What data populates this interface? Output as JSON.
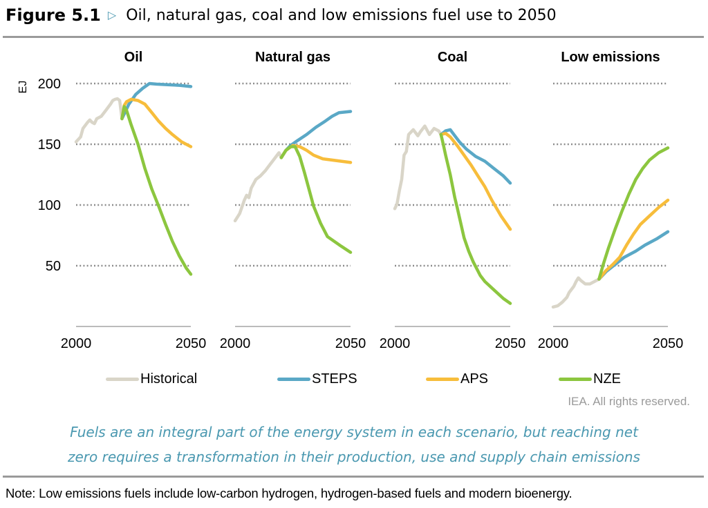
{
  "figure": {
    "number": "Figure 5.1",
    "marker_icon": "triangle-right",
    "title": "Oil, natural gas, coal and low emissions fuel use to 2050"
  },
  "legend": [
    {
      "name": "Historical",
      "color": "#d9d5c8"
    },
    {
      "name": "STEPS",
      "color": "#5aa8c6"
    },
    {
      "name": "APS",
      "color": "#f7bd3b"
    },
    {
      "name": "NZE",
      "color": "#8cc63f"
    }
  ],
  "rights": "IEA. All rights reserved.",
  "caption": {
    "line1": "Fuels are an integral part of the energy system in each scenario, but reaching net",
    "line2": "zero requires a transformation in their production, use and supply chain emissions"
  },
  "note": "Note: Low emissions fuels include low-carbon hydrogen, hydrogen-based fuels and modern bioenergy.",
  "chart_data": {
    "type": "line",
    "ylabel": "EJ",
    "ylim": [
      0,
      200
    ],
    "yticks": [
      50,
      100,
      150,
      200
    ],
    "xlim": [
      2000,
      2050
    ],
    "xticks": [
      "2000",
      "2050"
    ],
    "grid": "horizontal-dotted",
    "legend_position": "bottom",
    "panels": [
      {
        "title": "Oil",
        "series": [
          {
            "name": "Historical",
            "points": [
              [
                2000,
                152
              ],
              [
                2002,
                156
              ],
              [
                2003,
                163
              ],
              [
                2005,
                168
              ],
              [
                2006,
                170
              ],
              [
                2007,
                168
              ],
              [
                2008,
                167
              ],
              [
                2009,
                171
              ],
              [
                2011,
                173
              ],
              [
                2013,
                178
              ],
              [
                2015,
                183
              ],
              [
                2016,
                186
              ],
              [
                2017,
                187
              ],
              [
                2018,
                187.5
              ],
              [
                2019,
                186
              ],
              [
                2020,
                171
              ]
            ]
          },
          {
            "name": "STEPS",
            "points": [
              [
                2020,
                171
              ],
              [
                2021,
                175
              ],
              [
                2023,
                183
              ],
              [
                2026,
                191
              ],
              [
                2029,
                196
              ],
              [
                2032,
                200
              ],
              [
                2035,
                199.5
              ],
              [
                2040,
                199
              ],
              [
                2045,
                198.5
              ],
              [
                2050,
                197.5
              ]
            ]
          },
          {
            "name": "APS",
            "points": [
              [
                2020,
                171
              ],
              [
                2021,
                182
              ],
              [
                2022,
                185
              ],
              [
                2024,
                187
              ],
              [
                2027,
                186
              ],
              [
                2030,
                183
              ],
              [
                2033,
                176
              ],
              [
                2036,
                169
              ],
              [
                2039,
                163
              ],
              [
                2042,
                158
              ],
              [
                2046,
                152
              ],
              [
                2050,
                148
              ]
            ]
          },
          {
            "name": "NZE",
            "points": [
              [
                2020,
                171
              ],
              [
                2021,
                181
              ],
              [
                2022,
                178
              ],
              [
                2024,
                166
              ],
              [
                2027,
                150
              ],
              [
                2030,
                130
              ],
              [
                2033,
                113
              ],
              [
                2036,
                99
              ],
              [
                2039,
                84
              ],
              [
                2042,
                70
              ],
              [
                2045,
                58
              ],
              [
                2048,
                48
              ],
              [
                2050,
                43
              ]
            ]
          }
        ]
      },
      {
        "title": "Natural gas",
        "series": [
          {
            "name": "Historical",
            "points": [
              [
                2000,
                87
              ],
              [
                2002,
                93
              ],
              [
                2004,
                104
              ],
              [
                2005,
                108
              ],
              [
                2006,
                106
              ],
              [
                2007,
                114
              ],
              [
                2009,
                121
              ],
              [
                2011,
                124
              ],
              [
                2013,
                128
              ],
              [
                2015,
                133
              ],
              [
                2017,
                138
              ],
              [
                2019,
                143
              ],
              [
                2020,
                139
              ]
            ]
          },
          {
            "name": "STEPS",
            "points": [
              [
                2020,
                139
              ],
              [
                2022,
                145
              ],
              [
                2024,
                149
              ],
              [
                2027,
                153
              ],
              [
                2031,
                158
              ],
              [
                2035,
                164
              ],
              [
                2039,
                169
              ],
              [
                2042,
                173
              ],
              [
                2045,
                176
              ],
              [
                2050,
                177
              ]
            ]
          },
          {
            "name": "APS",
            "points": [
              [
                2020,
                139
              ],
              [
                2022,
                145
              ],
              [
                2025,
                149
              ],
              [
                2028,
                148
              ],
              [
                2031,
                145
              ],
              [
                2034,
                141
              ],
              [
                2038,
                138
              ],
              [
                2042,
                137
              ],
              [
                2046,
                136
              ],
              [
                2050,
                135
              ]
            ]
          },
          {
            "name": "NZE",
            "points": [
              [
                2020,
                139
              ],
              [
                2022,
                145
              ],
              [
                2024,
                148
              ],
              [
                2026,
                148
              ],
              [
                2028,
                140
              ],
              [
                2030,
                127
              ],
              [
                2032,
                113
              ],
              [
                2034,
                99
              ],
              [
                2037,
                85
              ],
              [
                2040,
                74
              ],
              [
                2043,
                70
              ],
              [
                2046,
                66
              ],
              [
                2050,
                61
              ]
            ]
          }
        ]
      },
      {
        "title": "Coal",
        "series": [
          {
            "name": "Historical",
            "points": [
              [
                2000,
                97
              ],
              [
                2001,
                101
              ],
              [
                2002,
                112
              ],
              [
                2003,
                121
              ],
              [
                2004,
                141
              ],
              [
                2005,
                144
              ],
              [
                2006,
                158
              ],
              [
                2008,
                162
              ],
              [
                2010,
                157
              ],
              [
                2011,
                160
              ],
              [
                2013,
                165
              ],
              [
                2015,
                158
              ],
              [
                2017,
                163
              ],
              [
                2019,
                161
              ],
              [
                2020,
                158
              ]
            ]
          },
          {
            "name": "STEPS",
            "points": [
              [
                2020,
                158
              ],
              [
                2022,
                161
              ],
              [
                2024,
                162
              ],
              [
                2026,
                157
              ],
              [
                2028,
                152
              ],
              [
                2031,
                146
              ],
              [
                2035,
                140
              ],
              [
                2039,
                136
              ],
              [
                2043,
                130
              ],
              [
                2047,
                124
              ],
              [
                2050,
                118
              ]
            ]
          },
          {
            "name": "APS",
            "points": [
              [
                2020,
                158
              ],
              [
                2022,
                159
              ],
              [
                2024,
                156
              ],
              [
                2027,
                149
              ],
              [
                2030,
                141
              ],
              [
                2033,
                133
              ],
              [
                2036,
                124
              ],
              [
                2039,
                115
              ],
              [
                2042,
                104
              ],
              [
                2046,
                91
              ],
              [
                2050,
                80
              ]
            ]
          },
          {
            "name": "NZE",
            "points": [
              [
                2020,
                158
              ],
              [
                2021,
                150
              ],
              [
                2022,
                141
              ],
              [
                2024,
                125
              ],
              [
                2026,
                106
              ],
              [
                2027,
                98
              ],
              [
                2030,
                73
              ],
              [
                2032,
                62
              ],
              [
                2034,
                53
              ],
              [
                2037,
                42
              ],
              [
                2039,
                37
              ],
              [
                2043,
                30
              ],
              [
                2047,
                23
              ],
              [
                2050,
                19
              ]
            ]
          }
        ]
      },
      {
        "title": "Low emissions",
        "series": [
          {
            "name": "Historical",
            "points": [
              [
                2000,
                16
              ],
              [
                2002,
                17
              ],
              [
                2004,
                20
              ],
              [
                2006,
                24
              ],
              [
                2007,
                28
              ],
              [
                2009,
                33
              ],
              [
                2010,
                37
              ],
              [
                2011,
                40
              ],
              [
                2012,
                38
              ],
              [
                2014,
                35
              ],
              [
                2016,
                35
              ],
              [
                2018,
                37
              ],
              [
                2020,
                39
              ]
            ]
          },
          {
            "name": "STEPS",
            "points": [
              [
                2020,
                39
              ],
              [
                2023,
                45
              ],
              [
                2027,
                51
              ],
              [
                2031,
                57
              ],
              [
                2036,
                62
              ],
              [
                2040,
                67
              ],
              [
                2045,
                72
              ],
              [
                2050,
                78
              ]
            ]
          },
          {
            "name": "APS",
            "points": [
              [
                2020,
                39
              ],
              [
                2023,
                46
              ],
              [
                2026,
                51
              ],
              [
                2029,
                57
              ],
              [
                2032,
                67
              ],
              [
                2035,
                76
              ],
              [
                2038,
                84
              ],
              [
                2042,
                91
              ],
              [
                2046,
                98
              ],
              [
                2050,
                104
              ]
            ]
          },
          {
            "name": "NZE",
            "points": [
              [
                2020,
                39
              ],
              [
                2022,
                52
              ],
              [
                2024,
                64
              ],
              [
                2027,
                80
              ],
              [
                2030,
                95
              ],
              [
                2033,
                109
              ],
              [
                2036,
                121
              ],
              [
                2039,
                130
              ],
              [
                2042,
                137
              ],
              [
                2046,
                143
              ],
              [
                2050,
                147
              ]
            ]
          }
        ]
      }
    ]
  }
}
